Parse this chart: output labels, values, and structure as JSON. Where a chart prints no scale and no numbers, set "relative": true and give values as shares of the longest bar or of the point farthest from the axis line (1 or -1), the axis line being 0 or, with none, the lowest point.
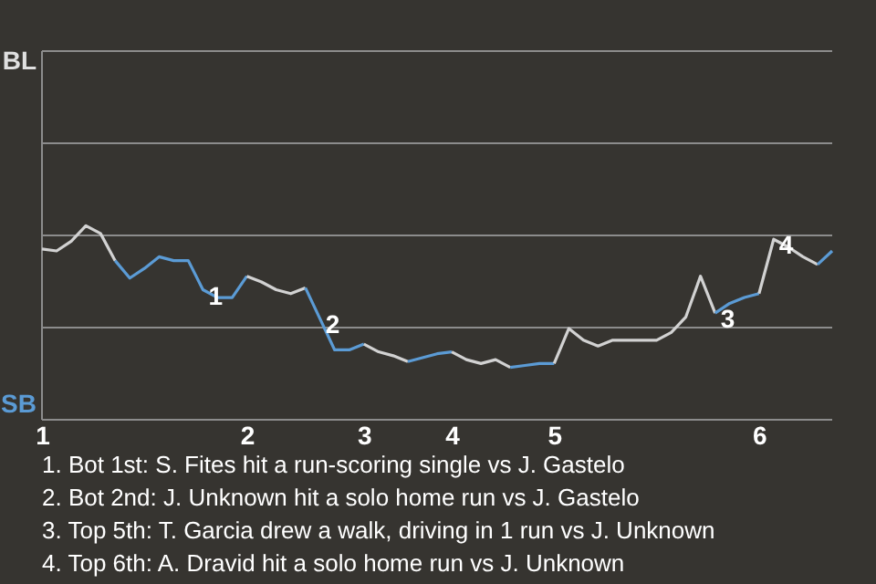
{
  "chart_data": {
    "type": "line",
    "relative": true,
    "ref_lines": [
      {
        "axis": "y",
        "value": 0.475,
        "color": "#8c8c8c"
      },
      {
        "axis": "y",
        "value": 0.95,
        "color": "#8c8c8c"
      },
      {
        "axis": "y",
        "value": 1.425,
        "color": "#8c8c8c"
      },
      {
        "axis": "y",
        "value": 1.9,
        "color": "#8c8c8c"
      }
    ],
    "categories": [
      "1",
      null,
      null,
      null,
      null,
      null,
      null,
      null,
      null,
      null,
      null,
      null,
      null,
      null,
      "2",
      null,
      null,
      null,
      null,
      null,
      null,
      null,
      "3",
      null,
      null,
      null,
      null,
      null,
      "4",
      null,
      null,
      null,
      null,
      null,
      null,
      "5",
      null,
      null,
      null,
      null,
      null,
      null,
      null,
      null,
      null,
      null,
      null,
      null,
      null,
      "6",
      null,
      null,
      null,
      null,
      null
    ],
    "series": [
      {
        "color": "#d2d2d2",
        "values": [
          0.88,
          0.87,
          0.92,
          1.0,
          0.96,
          0.82,
          null,
          null,
          null,
          null,
          null,
          null,
          null,
          null,
          null,
          null,
          null,
          null,
          null,
          null,
          null,
          null,
          null,
          null,
          null,
          null,
          null,
          null,
          null,
          null,
          null,
          null,
          null,
          null,
          null,
          null,
          null,
          null,
          null,
          null,
          null,
          null,
          null,
          null,
          null,
          null,
          null,
          null,
          null,
          null,
          null,
          null,
          null,
          null,
          null
        ]
      },
      {
        "color": "#5b9bd5",
        "values": [
          null,
          null,
          null,
          null,
          null,
          0.82,
          0.73,
          0.78,
          0.84,
          0.82,
          0.82,
          0.67,
          0.63,
          0.63,
          0.74,
          null,
          null,
          null,
          null,
          null,
          null,
          null,
          null,
          null,
          null,
          null,
          null,
          null,
          null,
          null,
          null,
          null,
          null,
          null,
          null,
          null,
          null,
          null,
          null,
          null,
          null,
          null,
          null,
          null,
          null,
          null,
          null,
          null,
          null,
          null,
          null,
          null,
          null,
          null,
          null
        ]
      },
      {
        "color": "#d2d2d2",
        "values": [
          null,
          null,
          null,
          null,
          null,
          null,
          null,
          null,
          null,
          null,
          null,
          null,
          null,
          null,
          0.74,
          0.71,
          0.67,
          0.65,
          0.68,
          null,
          null,
          null,
          null,
          null,
          null,
          null,
          null,
          null,
          null,
          null,
          null,
          null,
          null,
          null,
          null,
          null,
          null,
          null,
          null,
          null,
          null,
          null,
          null,
          null,
          null,
          null,
          null,
          null,
          null,
          null,
          null,
          null,
          null,
          null,
          null
        ]
      },
      {
        "color": "#5b9bd5",
        "values": [
          null,
          null,
          null,
          null,
          null,
          null,
          null,
          null,
          null,
          null,
          null,
          null,
          null,
          null,
          null,
          null,
          null,
          null,
          0.68,
          0.52,
          0.36,
          0.36,
          0.39,
          null,
          null,
          null,
          null,
          null,
          null,
          null,
          null,
          null,
          null,
          null,
          null,
          null,
          null,
          null,
          null,
          null,
          null,
          null,
          null,
          null,
          null,
          null,
          null,
          null,
          null,
          null,
          null,
          null,
          null,
          null,
          null
        ]
      },
      {
        "color": "#d2d2d2",
        "values": [
          null,
          null,
          null,
          null,
          null,
          null,
          null,
          null,
          null,
          null,
          null,
          null,
          null,
          null,
          null,
          null,
          null,
          null,
          null,
          null,
          null,
          null,
          0.39,
          0.35,
          0.33,
          0.3,
          null,
          null,
          null,
          null,
          null,
          null,
          null,
          null,
          null,
          null,
          null,
          null,
          null,
          null,
          null,
          null,
          null,
          null,
          null,
          null,
          null,
          null,
          null,
          null,
          null,
          null,
          null,
          null,
          null
        ]
      },
      {
        "color": "#5b9bd5",
        "values": [
          null,
          null,
          null,
          null,
          null,
          null,
          null,
          null,
          null,
          null,
          null,
          null,
          null,
          null,
          null,
          null,
          null,
          null,
          null,
          null,
          null,
          null,
          null,
          null,
          null,
          0.3,
          0.32,
          0.34,
          0.35,
          null,
          null,
          null,
          null,
          null,
          null,
          null,
          null,
          null,
          null,
          null,
          null,
          null,
          null,
          null,
          null,
          null,
          null,
          null,
          null,
          null,
          null,
          null,
          null,
          null,
          null
        ]
      },
      {
        "color": "#d2d2d2",
        "values": [
          null,
          null,
          null,
          null,
          null,
          null,
          null,
          null,
          null,
          null,
          null,
          null,
          null,
          null,
          null,
          null,
          null,
          null,
          null,
          null,
          null,
          null,
          null,
          null,
          null,
          null,
          null,
          null,
          0.35,
          0.31,
          0.29,
          0.31,
          0.27,
          null,
          null,
          null,
          null,
          null,
          null,
          null,
          null,
          null,
          null,
          null,
          null,
          null,
          null,
          null,
          null,
          null,
          null,
          null,
          null,
          null,
          null
        ]
      },
      {
        "color": "#5b9bd5",
        "values": [
          null,
          null,
          null,
          null,
          null,
          null,
          null,
          null,
          null,
          null,
          null,
          null,
          null,
          null,
          null,
          null,
          null,
          null,
          null,
          null,
          null,
          null,
          null,
          null,
          null,
          null,
          null,
          null,
          null,
          null,
          null,
          null,
          0.27,
          0.28,
          0.29,
          0.29,
          null,
          null,
          null,
          null,
          null,
          null,
          null,
          null,
          null,
          null,
          null,
          null,
          null,
          null,
          null,
          null,
          null,
          null,
          null
        ]
      },
      {
        "color": "#d2d2d2",
        "values": [
          null,
          null,
          null,
          null,
          null,
          null,
          null,
          null,
          null,
          null,
          null,
          null,
          null,
          null,
          null,
          null,
          null,
          null,
          null,
          null,
          null,
          null,
          null,
          null,
          null,
          null,
          null,
          null,
          null,
          null,
          null,
          null,
          null,
          null,
          null,
          0.29,
          0.47,
          0.41,
          0.38,
          0.41,
          0.41,
          0.41,
          0.41,
          0.45,
          0.53,
          0.74,
          0.55,
          null,
          null,
          null,
          null,
          null,
          null,
          null,
          null
        ]
      },
      {
        "color": "#5b9bd5",
        "values": [
          null,
          null,
          null,
          null,
          null,
          null,
          null,
          null,
          null,
          null,
          null,
          null,
          null,
          null,
          null,
          null,
          null,
          null,
          null,
          null,
          null,
          null,
          null,
          null,
          null,
          null,
          null,
          null,
          null,
          null,
          null,
          null,
          null,
          null,
          null,
          null,
          null,
          null,
          null,
          null,
          null,
          null,
          null,
          null,
          null,
          null,
          0.55,
          0.6,
          0.63,
          0.65,
          null,
          null,
          null,
          null,
          null
        ]
      },
      {
        "color": "#d2d2d2",
        "values": [
          null,
          null,
          null,
          null,
          null,
          null,
          null,
          null,
          null,
          null,
          null,
          null,
          null,
          null,
          null,
          null,
          null,
          null,
          null,
          null,
          null,
          null,
          null,
          null,
          null,
          null,
          null,
          null,
          null,
          null,
          null,
          null,
          null,
          null,
          null,
          null,
          null,
          null,
          null,
          null,
          null,
          null,
          null,
          null,
          null,
          null,
          null,
          null,
          null,
          0.65,
          0.93,
          0.89,
          0.84,
          0.8,
          null
        ]
      },
      {
        "color": "#5b9bd5",
        "values": [
          null,
          null,
          null,
          null,
          null,
          null,
          null,
          null,
          null,
          null,
          null,
          null,
          null,
          null,
          null,
          null,
          null,
          null,
          null,
          null,
          null,
          null,
          null,
          null,
          null,
          null,
          null,
          null,
          null,
          null,
          null,
          null,
          null,
          null,
          null,
          null,
          null,
          null,
          null,
          null,
          null,
          null,
          null,
          null,
          null,
          null,
          null,
          null,
          null,
          null,
          null,
          null,
          null,
          0.8,
          0.87
        ]
      }
    ],
    "annotations": [
      "BL",
      "SB",
      {
        "text": "1",
        "y": 0.67
      },
      {
        "text": "2",
        "y": 0.52
      },
      {
        "text": "3",
        "y": 0.55
      },
      {
        "text": "4",
        "y": 0.93
      },
      "1. Bot 1st: S. Fites hit a run-scoring single vs J. Gastelo",
      "2. Bot 2nd: J. Unknown hit a solo home run vs J. Gastelo",
      "3. Top 5th: T. Garcia drew a walk, driving in 1 run vs J. Unknown",
      "4. Top 6th: A. Dravid hit a solo home run vs J. Unknown"
    ]
  }
}
